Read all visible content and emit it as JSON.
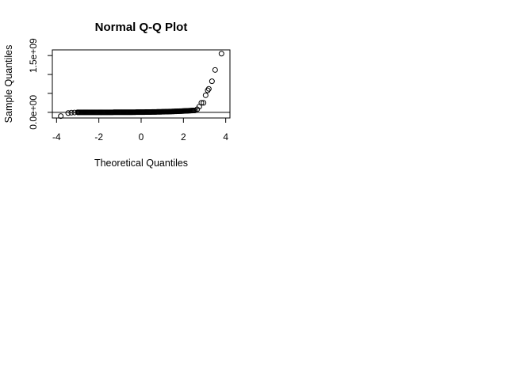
{
  "chart_data": {
    "type": "scatter",
    "title": "Normal Q-Q Plot",
    "xlabel": "Theoretical Quantiles",
    "ylabel": "Sample Quantiles",
    "xlim": [
      -4.2,
      4.2
    ],
    "ylim": [
      -150000000,
      1650000000
    ],
    "x_ticks": [
      -4,
      -2,
      0,
      2,
      4
    ],
    "x_tick_labels": [
      "-4",
      "-2",
      "0",
      "2",
      "4"
    ],
    "y_ticks": [
      0,
      500000000,
      1000000000,
      1500000000
    ],
    "y_tick_labels": [
      "0.0e+00",
      "",
      "",
      "1.5e+09"
    ],
    "grid": false,
    "reference_line": {
      "y": 0
    },
    "points": [
      {
        "x": -3.8,
        "y": -100000000
      },
      {
        "x": -3.45,
        "y": -20000000
      },
      {
        "x": -3.3,
        "y": -10000000
      },
      {
        "x": -3.15,
        "y": -5000000
      },
      {
        "x": -3.0,
        "y": 0
      },
      {
        "x": 2.55,
        "y": 50000000
      },
      {
        "x": 2.65,
        "y": 80000000
      },
      {
        "x": 2.75,
        "y": 150000000
      },
      {
        "x": 2.85,
        "y": 250000000
      },
      {
        "x": 2.95,
        "y": 250000000
      },
      {
        "x": 3.05,
        "y": 450000000
      },
      {
        "x": 3.15,
        "y": 580000000
      },
      {
        "x": 3.2,
        "y": 620000000
      },
      {
        "x": 3.35,
        "y": 820000000
      },
      {
        "x": 3.5,
        "y": 1120000000
      },
      {
        "x": 3.8,
        "y": 1550000000
      }
    ],
    "dense_band": {
      "x_start": -3.0,
      "x_end": 2.5,
      "y_start": 0,
      "y_end": 50000000
    }
  }
}
